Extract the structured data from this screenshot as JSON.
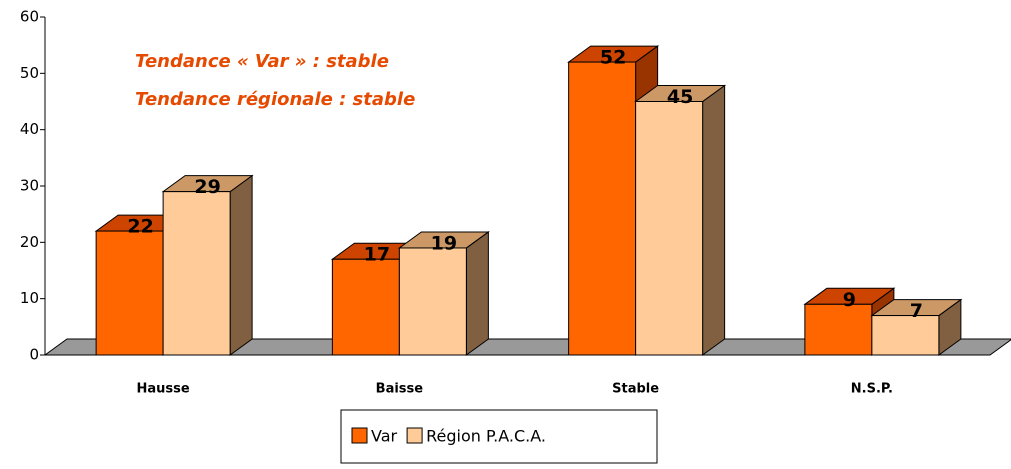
{
  "chart_data": {
    "type": "bar3d",
    "categories": [
      "Hausse",
      "Baisse",
      "Stable",
      "N.S.P."
    ],
    "series": [
      {
        "name": "Var",
        "color": "#ff6600",
        "top": "#cc4400",
        "side": "#993300",
        "values": [
          22,
          17,
          52,
          9
        ]
      },
      {
        "name": "Région P.A.C.A.",
        "color": "#ffcc99",
        "top": "#cc9966",
        "side": "#806040",
        "values": [
          29,
          19,
          45,
          7
        ]
      }
    ],
    "ylim": [
      0,
      60
    ],
    "yticks": [
      0,
      10,
      20,
      30,
      40,
      50,
      60
    ],
    "annotations": [
      "Tendance « Var » : stable",
      "Tendance régionale : stable"
    ],
    "legend": "bottom"
  }
}
